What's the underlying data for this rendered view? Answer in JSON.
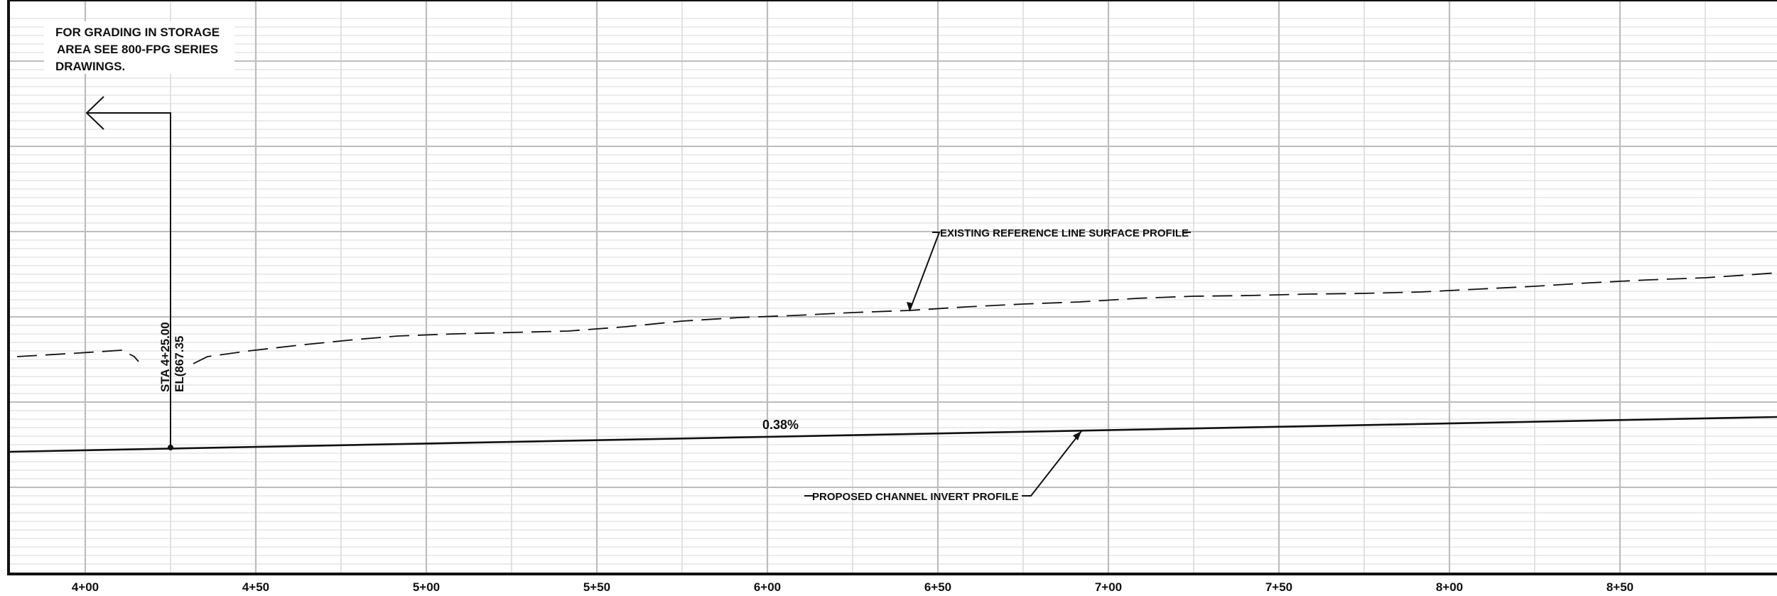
{
  "grid_note": {
    "lines": [
      "FOR GRADING IN STORAGE",
      "AREA SEE 800-FPG SERIES",
      "DRAWINGS."
    ]
  },
  "callout": {
    "station_text": "STA 4+25.00",
    "elevation_text": "EL(867.35"
  },
  "labels": {
    "existing_profile": "EXISTING REFERENCE LINE SURFACE PROFILE",
    "proposed_profile": "PROPOSED CHANNEL INVERT PROFILE",
    "grade": "0.38%"
  },
  "x_axis": {
    "stations": [
      "4+00",
      "4+50",
      "5+00",
      "5+50",
      "6+00",
      "6+50",
      "7+00",
      "7+50",
      "8+00",
      "8+50"
    ]
  },
  "colors": {
    "grid_major": "#bdbdbd",
    "grid_minor": "#d9d9d9",
    "line": "#111111"
  }
}
